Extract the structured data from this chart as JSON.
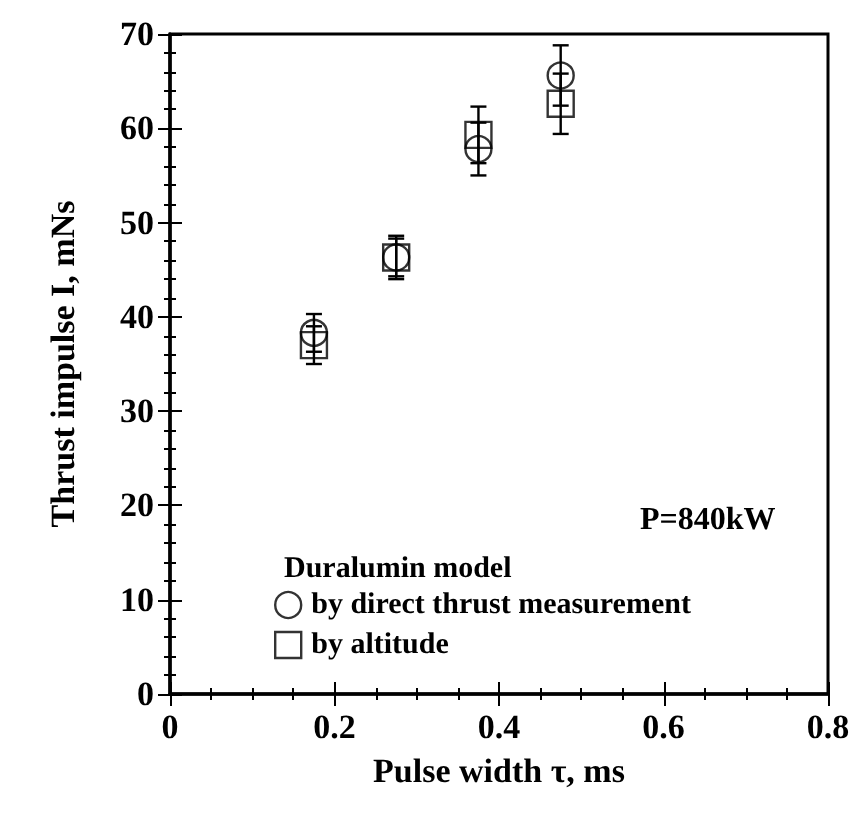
{
  "chart_data": {
    "type": "scatter",
    "xlabel": "Pulse width τ, ms",
    "ylabel": "Thrust impulse I, mNs",
    "legend_title": "Duralumin model",
    "annotations": [
      "P=840kW"
    ],
    "x": [
      0.175,
      0.275,
      0.375,
      0.475
    ],
    "series": [
      {
        "name": "by direct thrust measurement",
        "color": "#000000",
        "marker": "circle",
        "values": [
          38.3,
          46.3,
          57.8,
          65.6
        ],
        "errors": [
          2,
          2.3,
          2.8,
          3.2
        ]
      },
      {
        "name": "by altitude",
        "color": "#000000",
        "marker": "square",
        "values": [
          37.0,
          46.3,
          59.3,
          62.6
        ],
        "errors": [
          2,
          2,
          3,
          3.2
        ]
      }
    ],
    "xlim": [
      0,
      0.8
    ],
    "xticks": [
      0,
      0.2,
      0.4,
      0.6,
      0.8
    ],
    "ylim": [
      0,
      70
    ],
    "yticks": [
      0,
      10,
      20,
      30,
      40,
      50,
      60,
      70
    ],
    "grid": false,
    "legend": "bottom left"
  }
}
